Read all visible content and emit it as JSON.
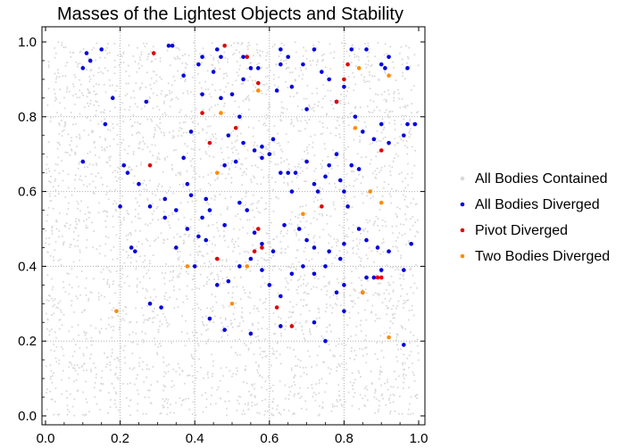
{
  "chart_data": {
    "type": "scatter",
    "title": "Masses of the Lightest Objects and Stability",
    "xlabel": "",
    "ylabel": "",
    "xlim": [
      0.0,
      1.0
    ],
    "ylim": [
      0.0,
      1.0
    ],
    "x_ticks": [
      "0.0",
      "0.2",
      "0.4",
      "0.6",
      "0.8",
      "1.0"
    ],
    "y_ticks": [
      "0.0",
      "0.2",
      "0.4",
      "0.6",
      "0.8",
      "1.0"
    ],
    "grid": true,
    "legend_position": "right",
    "series": [
      {
        "name": "All Bodies Contained",
        "color": "#d9d9d9",
        "note_density": "dense uniform background",
        "points": []
      },
      {
        "name": "All Bodies Diverged",
        "color": "#0000e0",
        "points": [
          [
            0.11,
            0.97
          ],
          [
            0.15,
            0.98
          ],
          [
            0.12,
            0.95
          ],
          [
            0.1,
            0.93
          ],
          [
            0.18,
            0.85
          ],
          [
            0.16,
            0.78
          ],
          [
            0.27,
            0.84
          ],
          [
            0.33,
            0.99
          ],
          [
            0.34,
            0.99
          ],
          [
            0.37,
            0.91
          ],
          [
            0.42,
            0.96
          ],
          [
            0.41,
            0.94
          ],
          [
            0.46,
            0.98
          ],
          [
            0.47,
            0.96
          ],
          [
            0.45,
            0.92
          ],
          [
            0.53,
            0.96
          ],
          [
            0.63,
            0.98
          ],
          [
            0.65,
            0.96
          ],
          [
            0.63,
            0.94
          ],
          [
            0.69,
            0.94
          ],
          [
            0.72,
            0.98
          ],
          [
            0.82,
            0.98
          ],
          [
            0.86,
            0.98
          ],
          [
            0.9,
            0.94
          ],
          [
            0.91,
            0.93
          ],
          [
            0.92,
            0.96
          ],
          [
            0.97,
            0.93
          ],
          [
            0.39,
            0.76
          ],
          [
            0.42,
            0.86
          ],
          [
            0.47,
            0.85
          ],
          [
            0.5,
            0.86
          ],
          [
            0.53,
            0.9
          ],
          [
            0.55,
            0.93
          ],
          [
            0.57,
            0.93
          ],
          [
            0.52,
            0.8
          ],
          [
            0.49,
            0.75
          ],
          [
            0.53,
            0.73
          ],
          [
            0.58,
            0.72
          ],
          [
            0.61,
            0.74
          ],
          [
            0.62,
            0.87
          ],
          [
            0.66,
            0.88
          ],
          [
            0.7,
            0.82
          ],
          [
            0.74,
            0.92
          ],
          [
            0.76,
            0.9
          ],
          [
            0.78,
            0.84
          ],
          [
            0.8,
            0.88
          ],
          [
            0.83,
            0.8
          ],
          [
            0.85,
            0.76
          ],
          [
            0.88,
            0.74
          ],
          [
            0.92,
            0.73
          ],
          [
            0.96,
            0.75
          ],
          [
            0.97,
            0.78
          ],
          [
            0.99,
            0.78
          ],
          [
            0.9,
            0.78
          ],
          [
            0.1,
            0.68
          ],
          [
            0.22,
            0.65
          ],
          [
            0.25,
            0.62
          ],
          [
            0.21,
            0.67
          ],
          [
            0.37,
            0.69
          ],
          [
            0.38,
            0.62
          ],
          [
            0.39,
            0.59
          ],
          [
            0.32,
            0.58
          ],
          [
            0.35,
            0.55
          ],
          [
            0.43,
            0.58
          ],
          [
            0.44,
            0.55
          ],
          [
            0.48,
            0.67
          ],
          [
            0.51,
            0.68
          ],
          [
            0.56,
            0.71
          ],
          [
            0.58,
            0.69
          ],
          [
            0.6,
            0.7
          ],
          [
            0.63,
            0.65
          ],
          [
            0.65,
            0.65
          ],
          [
            0.66,
            0.6
          ],
          [
            0.67,
            0.65
          ],
          [
            0.7,
            0.68
          ],
          [
            0.72,
            0.62
          ],
          [
            0.73,
            0.6
          ],
          [
            0.75,
            0.64
          ],
          [
            0.76,
            0.67
          ],
          [
            0.78,
            0.7
          ],
          [
            0.79,
            0.63
          ],
          [
            0.8,
            0.6
          ],
          [
            0.82,
            0.67
          ],
          [
            0.84,
            0.66
          ],
          [
            0.2,
            0.56
          ],
          [
            0.28,
            0.56
          ],
          [
            0.32,
            0.53
          ],
          [
            0.38,
            0.5
          ],
          [
            0.42,
            0.53
          ],
          [
            0.48,
            0.51
          ],
          [
            0.52,
            0.57
          ],
          [
            0.54,
            0.55
          ],
          [
            0.56,
            0.49
          ],
          [
            0.58,
            0.46
          ],
          [
            0.61,
            0.44
          ],
          [
            0.64,
            0.51
          ],
          [
            0.68,
            0.5
          ],
          [
            0.7,
            0.47
          ],
          [
            0.72,
            0.45
          ],
          [
            0.75,
            0.4
          ],
          [
            0.76,
            0.44
          ],
          [
            0.79,
            0.42
          ],
          [
            0.8,
            0.46
          ],
          [
            0.81,
            0.56
          ],
          [
            0.84,
            0.5
          ],
          [
            0.86,
            0.47
          ],
          [
            0.89,
            0.45
          ],
          [
            0.92,
            0.44
          ],
          [
            0.98,
            0.46
          ],
          [
            0.23,
            0.45
          ],
          [
            0.24,
            0.44
          ],
          [
            0.41,
            0.48
          ],
          [
            0.43,
            0.47
          ],
          [
            0.4,
            0.4
          ],
          [
            0.46,
            0.35
          ],
          [
            0.49,
            0.36
          ],
          [
            0.52,
            0.4
          ],
          [
            0.55,
            0.42
          ],
          [
            0.58,
            0.39
          ],
          [
            0.6,
            0.35
          ],
          [
            0.63,
            0.32
          ],
          [
            0.66,
            0.38
          ],
          [
            0.69,
            0.4
          ],
          [
            0.72,
            0.38
          ],
          [
            0.78,
            0.33
          ],
          [
            0.8,
            0.35
          ],
          [
            0.86,
            0.37
          ],
          [
            0.88,
            0.37
          ],
          [
            0.9,
            0.39
          ],
          [
            0.96,
            0.39
          ],
          [
            0.28,
            0.3
          ],
          [
            0.44,
            0.26
          ],
          [
            0.48,
            0.23
          ],
          [
            0.55,
            0.22
          ],
          [
            0.63,
            0.24
          ],
          [
            0.72,
            0.25
          ],
          [
            0.8,
            0.28
          ],
          [
            0.85,
            0.33
          ],
          [
            0.75,
            0.2
          ],
          [
            0.96,
            0.19
          ],
          [
            0.31,
            0.29
          ],
          [
            0.35,
            0.45
          ]
        ]
      },
      {
        "name": "Pivot Diverged",
        "color": "#e00000",
        "points": [
          [
            0.29,
            0.97
          ],
          [
            0.48,
            0.99
          ],
          [
            0.54,
            0.96
          ],
          [
            0.57,
            0.89
          ],
          [
            0.42,
            0.81
          ],
          [
            0.78,
            0.84
          ],
          [
            0.8,
            0.9
          ],
          [
            0.81,
            0.94
          ],
          [
            0.9,
            0.71
          ],
          [
            0.28,
            0.67
          ],
          [
            0.57,
            0.5
          ],
          [
            0.58,
            0.45
          ],
          [
            0.56,
            0.44
          ],
          [
            0.46,
            0.42
          ],
          [
            0.62,
            0.29
          ],
          [
            0.66,
            0.24
          ],
          [
            0.74,
            0.56
          ],
          [
            0.89,
            0.37
          ],
          [
            0.9,
            0.37
          ],
          [
            0.51,
            0.77
          ],
          [
            0.44,
            0.73
          ]
        ]
      },
      {
        "name": "Two Bodies Diverged",
        "color": "#ff8c00",
        "points": [
          [
            0.57,
            0.87
          ],
          [
            0.47,
            0.81
          ],
          [
            0.46,
            0.65
          ],
          [
            0.38,
            0.4
          ],
          [
            0.54,
            0.4
          ],
          [
            0.5,
            0.3
          ],
          [
            0.19,
            0.28
          ],
          [
            0.69,
            0.54
          ],
          [
            0.83,
            0.77
          ],
          [
            0.87,
            0.6
          ],
          [
            0.9,
            0.57
          ],
          [
            0.84,
            0.93
          ],
          [
            0.92,
            0.91
          ],
          [
            0.85,
            0.33
          ],
          [
            0.92,
            0.21
          ]
        ]
      }
    ]
  }
}
